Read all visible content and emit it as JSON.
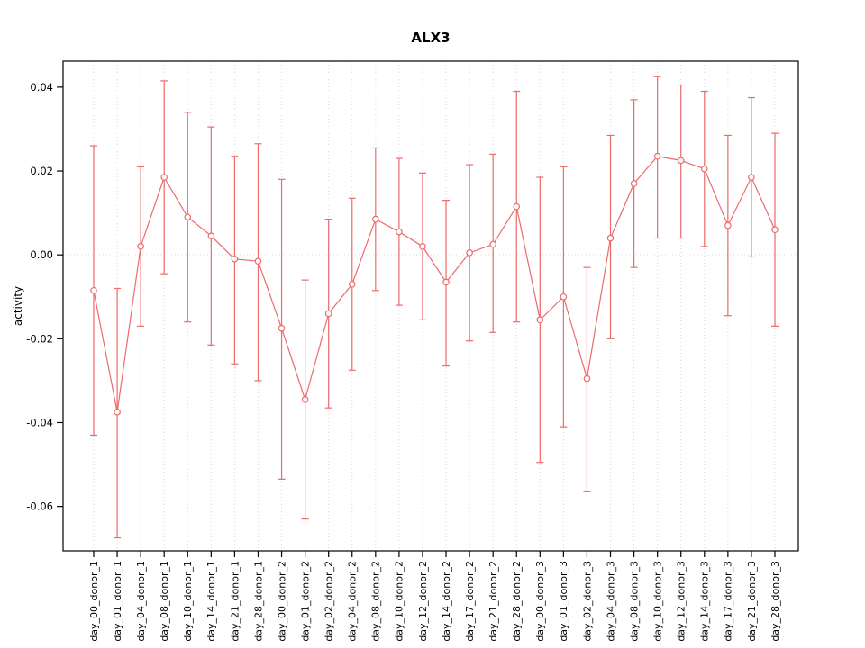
{
  "window": {
    "background": "#ffffff"
  },
  "chart_data": {
    "type": "line",
    "title": "ALX3",
    "xlabel": "",
    "ylabel": "activity",
    "ylim": [
      -0.0706,
      0.0462
    ],
    "yticks": [
      -0.06,
      -0.04,
      -0.02,
      0.0,
      0.02,
      0.04
    ],
    "ytick_labels": [
      "-0.06",
      "-0.04",
      "-0.02",
      "0.00",
      "0.02",
      "0.04"
    ],
    "grid": "vertical dotted gridline at every category; dotted horizontal line at y=0; legend none",
    "series_color": "#ed6a6a",
    "grid_color": "#d9d9d9",
    "point_style": "open-circle",
    "error_bars": true,
    "categories": [
      "day_00_donor_1",
      "day_01_donor_1",
      "day_04_donor_1",
      "day_08_donor_1",
      "day_10_donor_1",
      "day_14_donor_1",
      "day_21_donor_1",
      "day_28_donor_1",
      "day_00_donor_2",
      "day_01_donor_2",
      "day_02_donor_2",
      "day_04_donor_2",
      "day_08_donor_2",
      "day_10_donor_2",
      "day_12_donor_2",
      "day_14_donor_2",
      "day_17_donor_2",
      "day_21_donor_2",
      "day_28_donor_2",
      "day_00_donor_3",
      "day_01_donor_3",
      "day_02_donor_3",
      "day_04_donor_3",
      "day_08_donor_3",
      "day_10_donor_3",
      "day_12_donor_3",
      "day_14_donor_3",
      "day_17_donor_3",
      "day_21_donor_3",
      "day_28_donor_3"
    ],
    "values": [
      -0.0085,
      -0.0375,
      0.002,
      0.0185,
      0.009,
      0.0045,
      -0.001,
      -0.0015,
      -0.0175,
      -0.0345,
      -0.014,
      -0.007,
      0.0085,
      0.0055,
      0.002,
      -0.0065,
      0.0005,
      0.0025,
      0.0115,
      -0.0155,
      -0.01,
      -0.0295,
      0.004,
      0.017,
      0.0235,
      0.0225,
      0.0205,
      0.007,
      0.0185,
      0.006
    ],
    "error_low": [
      -0.043,
      -0.0675,
      -0.017,
      -0.0045,
      -0.016,
      -0.0215,
      -0.026,
      -0.03,
      -0.0535,
      -0.063,
      -0.0365,
      -0.0275,
      -0.0085,
      -0.012,
      -0.0155,
      -0.0265,
      -0.0205,
      -0.0185,
      -0.016,
      -0.0495,
      -0.041,
      -0.0565,
      -0.02,
      -0.003,
      0.004,
      0.004,
      0.002,
      -0.0145,
      -0.0005,
      -0.017
    ],
    "error_high": [
      0.026,
      -0.008,
      0.021,
      0.0415,
      0.034,
      0.0305,
      0.0235,
      0.0265,
      0.018,
      -0.006,
      0.0085,
      0.0135,
      0.0255,
      0.023,
      0.0195,
      0.013,
      0.0215,
      0.024,
      0.039,
      0.0185,
      0.021,
      -0.003,
      0.0285,
      0.037,
      0.0425,
      0.0405,
      0.039,
      0.0285,
      0.0375,
      0.029
    ]
  }
}
